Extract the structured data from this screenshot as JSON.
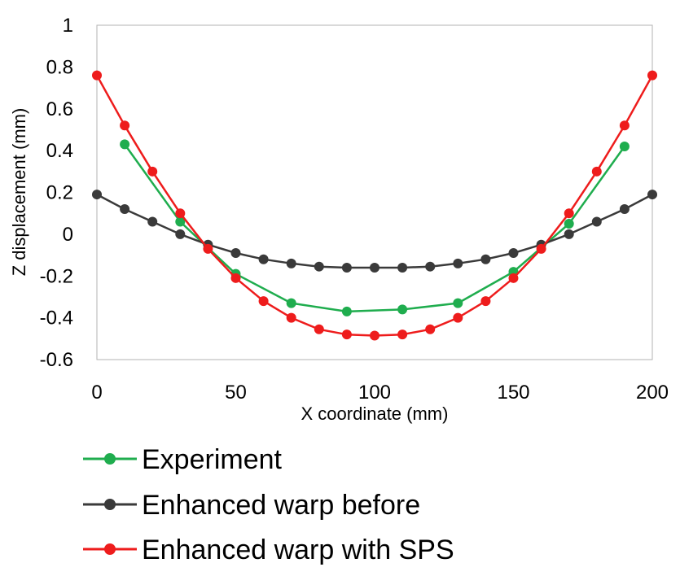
{
  "chart_data": {
    "type": "line",
    "title": "",
    "xlabel": "X coordinate (mm)",
    "ylabel": "Z displacement (mm)",
    "xlim": [
      0,
      200
    ],
    "ylim": [
      -0.6,
      1
    ],
    "x_ticks": [
      0,
      50,
      100,
      150,
      200
    ],
    "x_tick_labels": [
      "0",
      "50",
      "100",
      "150",
      "200"
    ],
    "y_ticks": [
      1,
      0.8,
      0.6,
      0.4,
      0.2,
      0,
      -0.2,
      -0.4,
      -0.6
    ],
    "y_tick_labels": [
      "1",
      "0.8",
      "0.6",
      "0.4",
      "0.2",
      "0",
      "-0.2",
      "-0.4",
      "-0.6"
    ],
    "grid": false,
    "legend_position": "bottom",
    "series": [
      {
        "name": "Experiment",
        "color": "#1fad4e",
        "x": [
          10,
          30,
          50,
          70,
          90,
          110,
          130,
          150,
          170,
          190
        ],
        "y": [
          0.43,
          0.06,
          -0.19,
          -0.33,
          -0.37,
          -0.36,
          -0.33,
          -0.18,
          0.05,
          0.42
        ]
      },
      {
        "name": "Enhanced warp before",
        "color": "#3a3a3a",
        "x": [
          0,
          10,
          20,
          30,
          40,
          50,
          60,
          70,
          80,
          90,
          100,
          110,
          120,
          130,
          140,
          150,
          160,
          170,
          180,
          190,
          200
        ],
        "y": [
          0.19,
          0.12,
          0.06,
          0.0,
          -0.05,
          -0.09,
          -0.12,
          -0.14,
          -0.155,
          -0.16,
          -0.16,
          -0.16,
          -0.155,
          -0.14,
          -0.12,
          -0.09,
          -0.05,
          0.0,
          0.06,
          0.12,
          0.19
        ]
      },
      {
        "name": "Enhanced warp with SPS",
        "color": "#ee1c1c",
        "x": [
          0,
          10,
          20,
          30,
          40,
          50,
          60,
          70,
          80,
          90,
          100,
          110,
          120,
          130,
          140,
          150,
          160,
          170,
          180,
          190,
          200
        ],
        "y": [
          0.76,
          0.52,
          0.3,
          0.1,
          -0.07,
          -0.21,
          -0.32,
          -0.4,
          -0.455,
          -0.48,
          -0.485,
          -0.48,
          -0.455,
          -0.4,
          -0.32,
          -0.21,
          -0.07,
          0.1,
          0.3,
          0.52,
          0.76
        ]
      }
    ]
  }
}
